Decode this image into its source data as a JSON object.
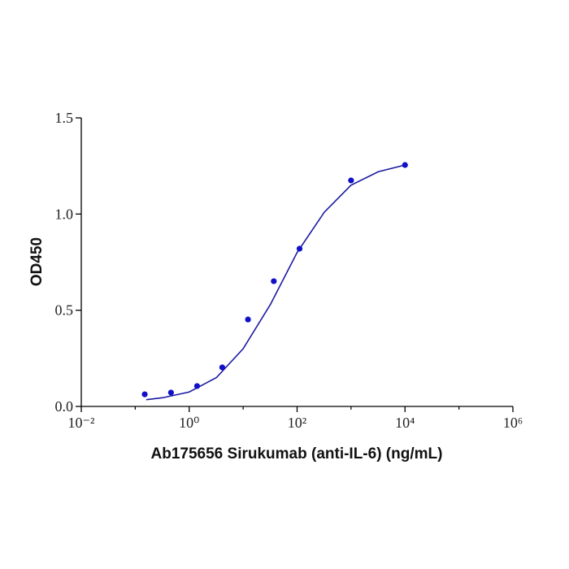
{
  "chart_data": {
    "type": "scatter",
    "x_label": "Ab175656 Sirukumab (anti-IL-6) (ng/mL)",
    "y_label": "OD450",
    "xscale": "log",
    "xlim": [
      0.01,
      1000000
    ],
    "xticks": [
      {
        "value": 0.01,
        "label": "10⁻²"
      },
      {
        "value": 1,
        "label": "10⁰"
      },
      {
        "value": 100,
        "label": "10²"
      },
      {
        "value": 10000,
        "label": "10⁴"
      },
      {
        "value": 1000000,
        "label": "10⁶"
      }
    ],
    "xminorticks": [
      0.1,
      10,
      1000,
      100000
    ],
    "ylim": [
      0,
      1.5
    ],
    "yticks": [
      {
        "value": 0,
        "label": "0.0"
      },
      0.5,
      {
        "value": 1,
        "label": "1.0"
      },
      1.5
    ],
    "color": "#1010c8",
    "x": [
      0.15,
      0.46,
      1.4,
      4.1,
      12.3,
      37,
      111,
      1000,
      10000
    ],
    "values": [
      0.063,
      0.072,
      0.106,
      0.203,
      0.452,
      0.651,
      0.82,
      1.175,
      1.255
    ],
    "curve": {
      "color": "#1a1aa0",
      "x": [
        0.16,
        0.32,
        1,
        3.2,
        10,
        32,
        100,
        320,
        1000,
        3200,
        10000
      ],
      "values": [
        0.035,
        0.045,
        0.075,
        0.15,
        0.3,
        0.53,
        0.8,
        1.01,
        1.15,
        1.22,
        1.255
      ]
    }
  }
}
